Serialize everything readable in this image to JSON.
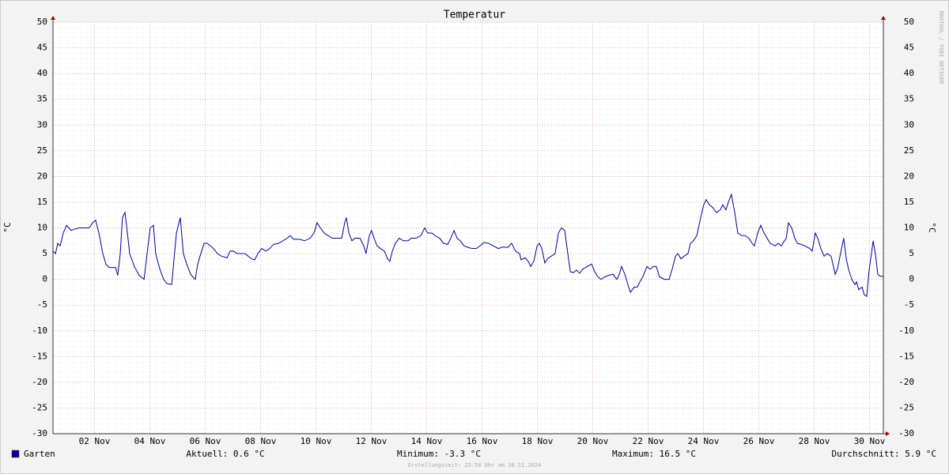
{
  "chart_data": {
    "type": "line",
    "title": "Temperatur",
    "ylabel": "°C",
    "watermark": "RRDTOOL / TOBI OETIKER",
    "stats": [
      "Aktuell: 0.6 °C",
      "Minimum: -3.3 °C",
      "Maximum: 16.5 °C",
      "Durchschnitt: 5.9 °C"
    ],
    "footer": "Erstellungszeit: 23:58 Uhr am 30.11.2024",
    "grid": true,
    "xlim": [
      0.5,
      30.5
    ],
    "xticks": [
      {
        "value": 2,
        "label": "02 Nov"
      },
      {
        "value": 4,
        "label": "04 Nov"
      },
      {
        "value": 6,
        "label": "06 Nov"
      },
      {
        "value": 8,
        "label": "08 Nov"
      },
      {
        "value": 10,
        "label": "10 Nov"
      },
      {
        "value": 12,
        "label": "12 Nov"
      },
      {
        "value": 14,
        "label": "14 Nov"
      },
      {
        "value": 16,
        "label": "16 Nov"
      },
      {
        "value": 18,
        "label": "18 Nov"
      },
      {
        "value": 20,
        "label": "20 Nov"
      },
      {
        "value": 22,
        "label": "22 Nov"
      },
      {
        "value": 24,
        "label": "24 Nov"
      },
      {
        "value": 26,
        "label": "26 Nov"
      },
      {
        "value": 28,
        "label": "28 Nov"
      },
      {
        "value": 30,
        "label": "30 Nov"
      }
    ],
    "ylim": [
      -30,
      50
    ],
    "yticks": [
      -30,
      -25,
      -20,
      -15,
      -10,
      -5,
      0,
      5,
      10,
      15,
      20,
      25,
      30,
      35,
      40,
      45,
      50
    ],
    "x": [
      0.5,
      0.59,
      0.67,
      0.76,
      0.87,
      0.99,
      1.16,
      1.3,
      1.44,
      1.67,
      1.81,
      1.93,
      2.04,
      2.16,
      2.3,
      2.41,
      2.53,
      2.76,
      2.84,
      2.93,
      3.01,
      3.1,
      3.19,
      3.27,
      3.44,
      3.61,
      3.79,
      3.9,
      4.01,
      4.13,
      4.21,
      4.36,
      4.5,
      4.61,
      4.79,
      4.84,
      4.96,
      5.1,
      5.21,
      5.33,
      5.47,
      5.64,
      5.73,
      5.84,
      5.96,
      6.07,
      6.19,
      6.3,
      6.44,
      6.59,
      6.79,
      6.9,
      7.01,
      7.16,
      7.44,
      7.67,
      7.79,
      7.9,
      8.04,
      8.19,
      8.33,
      8.47,
      8.64,
      8.81,
      8.96,
      9.07,
      9.19,
      9.39,
      9.59,
      9.79,
      9.93,
      10.04,
      10.16,
      10.3,
      10.44,
      10.59,
      10.81,
      10.93,
      11.04,
      11.1,
      11.19,
      11.3,
      11.41,
      11.59,
      11.73,
      11.81,
      11.93,
      12.01,
      12.1,
      12.21,
      12.33,
      12.47,
      12.59,
      12.67,
      12.76,
      12.87,
      13.01,
      13.16,
      13.33,
      13.44,
      13.61,
      13.79,
      13.93,
      14.04,
      14.19,
      14.3,
      14.47,
      14.61,
      14.76,
      14.87,
      14.99,
      15.1,
      15.21,
      15.36,
      15.5,
      15.64,
      15.79,
      15.93,
      16.07,
      16.24,
      16.41,
      16.59,
      16.76,
      16.93,
      17.07,
      17.21,
      17.36,
      17.41,
      17.56,
      17.67,
      17.76,
      17.87,
      17.99,
      18.07,
      18.16,
      18.27,
      18.36,
      18.5,
      18.64,
      18.76,
      18.87,
      18.99,
      19.1,
      19.19,
      19.3,
      19.41,
      19.53,
      19.64,
      19.81,
      19.96,
      20.07,
      20.19,
      20.3,
      20.44,
      20.59,
      20.73,
      20.87,
      20.96,
      21.04,
      21.16,
      21.27,
      21.36,
      21.5,
      21.61,
      21.7,
      21.81,
      21.96,
      22.07,
      22.19,
      22.3,
      22.41,
      22.59,
      22.76,
      22.87,
      22.99,
      23.07,
      23.19,
      23.3,
      23.44,
      23.53,
      23.64,
      23.76,
      23.9,
      24.01,
      24.1,
      24.21,
      24.33,
      24.47,
      24.61,
      24.7,
      24.81,
      24.9,
      25.01,
      25.13,
      25.24,
      25.39,
      25.5,
      25.64,
      25.76,
      25.84,
      25.96,
      26.07,
      26.19,
      26.3,
      26.41,
      26.59,
      26.7,
      26.81,
      26.99,
      27.07,
      27.19,
      27.3,
      27.39,
      27.53,
      27.67,
      27.84,
      27.93,
      28.04,
      28.13,
      28.24,
      28.36,
      28.47,
      28.61,
      28.76,
      28.84,
      28.99,
      29.07,
      29.16,
      29.24,
      29.36,
      29.47,
      29.53,
      29.61,
      29.73,
      29.81,
      29.9,
      29.99,
      30.07,
      30.13,
      30.21,
      30.3,
      30.39,
      30.5
    ],
    "series": [
      {
        "name": "Garten",
        "color": "#000099",
        "values": [
          5.5,
          5,
          7,
          6.5,
          9,
          10.5,
          9.5,
          9.8,
          10,
          10,
          10,
          11,
          11.5,
          9,
          5,
          3,
          2.3,
          2.3,
          0.8,
          5,
          12,
          13,
          9,
          5,
          2.5,
          0.8,
          0,
          5,
          10,
          10.5,
          5,
          2,
          0,
          -0.8,
          -1,
          2,
          9,
          12,
          5,
          3,
          1,
          0,
          3,
          5,
          7,
          7,
          6.5,
          6,
          5,
          4.5,
          4.2,
          5.5,
          5.5,
          5,
          5,
          4,
          3.8,
          5,
          6,
          5.5,
          6,
          6.8,
          7,
          7.5,
          8,
          8.5,
          7.8,
          7.8,
          7.5,
          8,
          9,
          11,
          10,
          9,
          8.5,
          8,
          8,
          8,
          11,
          12,
          9,
          7.5,
          8,
          8,
          6.5,
          5,
          8.5,
          9.5,
          8,
          6.5,
          6,
          5.5,
          4,
          3.5,
          5.5,
          7,
          8,
          7.5,
          7.5,
          8,
          8,
          8.5,
          10,
          9,
          9,
          8.5,
          8,
          7,
          6.8,
          8,
          9.5,
          8,
          7.5,
          6.5,
          6.2,
          6,
          6,
          6.5,
          7.2,
          7,
          6.5,
          6,
          6.3,
          6.2,
          7,
          5.5,
          5,
          3.8,
          4.2,
          3.5,
          2.5,
          3.5,
          6.5,
          7,
          6,
          3.2,
          4,
          4.5,
          5,
          9,
          10,
          9.5,
          5,
          1.5,
          1.3,
          1.8,
          1.2,
          2,
          2.5,
          3,
          1.5,
          0.5,
          0,
          0.5,
          0.8,
          1,
          0,
          1,
          2.5,
          1,
          -1,
          -2.5,
          -1.5,
          -1.5,
          -0.5,
          0.5,
          2.5,
          2,
          2.5,
          2.5,
          0.5,
          0,
          0,
          2,
          4.5,
          5,
          4,
          4.5,
          5,
          7,
          7.5,
          8.5,
          12,
          14.5,
          15.5,
          14.5,
          14,
          13,
          13.5,
          14.5,
          13.5,
          15,
          16.5,
          13,
          9,
          8.5,
          8.5,
          8,
          7,
          6.5,
          9,
          10.5,
          9,
          8,
          7,
          6.5,
          7,
          6.5,
          8,
          11,
          10,
          8,
          7,
          6.8,
          6.5,
          6,
          5.5,
          9,
          8,
          6,
          4.5,
          5,
          4.5,
          1,
          2,
          6,
          8,
          4,
          2,
          0,
          -1,
          -0.5,
          -2,
          -1.5,
          -3,
          -3.3,
          2,
          5,
          7.5,
          5,
          1,
          0.6,
          0.6
        ]
      }
    ]
  }
}
